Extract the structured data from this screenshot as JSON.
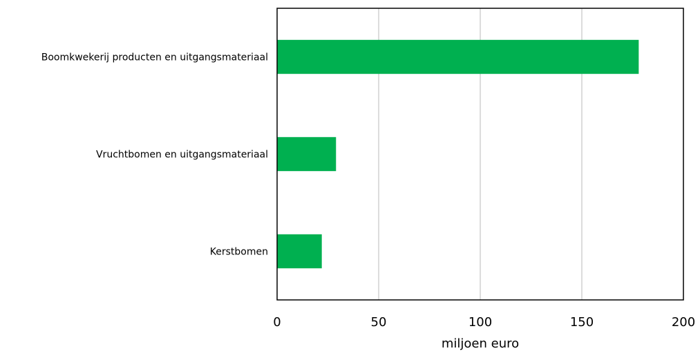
{
  "chart_data": {
    "type": "bar",
    "orientation": "horizontal",
    "categories": [
      "Boomkwekerij producten en uitgangsmateriaal",
      "Vruchtbomen en uitgangsmateriaal",
      "Kerstbomen"
    ],
    "values": [
      178,
      29,
      22
    ],
    "xlabel": "miljoen euro",
    "ylabel": "",
    "xlim": [
      0,
      200
    ],
    "xticks": [
      "0",
      "50",
      "100",
      "150",
      "200"
    ],
    "grid": "vertical",
    "legend": "none",
    "bar_color": "#00b050",
    "gridline_color": "#d0d0d0"
  }
}
